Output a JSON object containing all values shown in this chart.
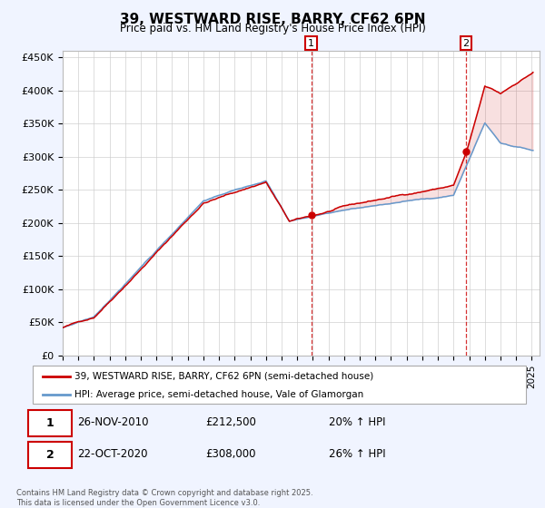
{
  "title": "39, WESTWARD RISE, BARRY, CF62 6PN",
  "subtitle": "Price paid vs. HM Land Registry's House Price Index (HPI)",
  "ylabel_ticks": [
    "£0",
    "£50K",
    "£100K",
    "£150K",
    "£200K",
    "£250K",
    "£300K",
    "£350K",
    "£400K",
    "£450K"
  ],
  "ytick_values": [
    0,
    50000,
    100000,
    150000,
    200000,
    250000,
    300000,
    350000,
    400000,
    450000
  ],
  "ylim": [
    0,
    460000
  ],
  "xlim_start": 1995.0,
  "xlim_end": 2025.5,
  "marker1_x": 2010.9,
  "marker1_y": 212500,
  "marker2_x": 2020.8,
  "marker2_y": 308000,
  "line1_color": "#cc0000",
  "line2_color": "#6699cc",
  "background_color": "#f0f4ff",
  "plot_bg_color": "#ffffff",
  "grid_color": "#cccccc",
  "dashed_line_color": "#cc0000",
  "legend1": "39, WESTWARD RISE, BARRY, CF62 6PN (semi-detached house)",
  "legend2": "HPI: Average price, semi-detached house, Vale of Glamorgan",
  "annotation1_date": "26-NOV-2010",
  "annotation1_price": "£212,500",
  "annotation1_hpi": "20% ↑ HPI",
  "annotation2_date": "22-OCT-2020",
  "annotation2_price": "£308,000",
  "annotation2_hpi": "26% ↑ HPI",
  "footer": "Contains HM Land Registry data © Crown copyright and database right 2025.\nThis data is licensed under the Open Government Licence v3.0."
}
